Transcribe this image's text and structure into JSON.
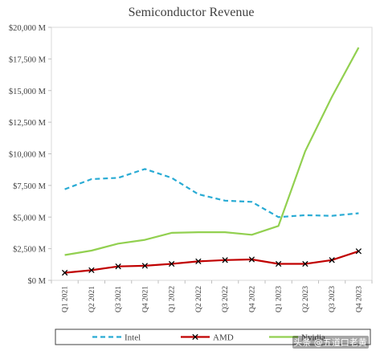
{
  "chart_data": {
    "type": "line",
    "title": "Semiconductor Revenue",
    "xlabel": "",
    "ylabel": "",
    "categories": [
      "Q1 2021",
      "Q2 2021",
      "Q3 2021",
      "Q4 2021",
      "Q1 2022",
      "Q2 2022",
      "Q3 2022",
      "Q4 2022",
      "Q1 2023",
      "Q2 2023",
      "Q3 2023",
      "Q4 2023"
    ],
    "ylim": [
      0,
      20000
    ],
    "y_ticks": [
      0,
      2500,
      5000,
      7500,
      10000,
      12500,
      15000,
      17500,
      20000
    ],
    "y_tick_labels": [
      "$0 M",
      "$2,500 M",
      "$5,000 M",
      "$7,500 M",
      "$10,000 M",
      "$12,500 M",
      "$15,000 M",
      "$17,500 M",
      "$20,000 M"
    ],
    "grid": false,
    "legend_position": "bottom",
    "series": [
      {
        "name": "Intel",
        "color": "#29abd4",
        "style": "dashed",
        "marker": "none",
        "values": [
          7200,
          8000,
          8100,
          8800,
          8100,
          6800,
          6300,
          6200,
          5000,
          5150,
          5100,
          5300
        ]
      },
      {
        "name": "AMD",
        "color": "#c00000",
        "style": "solid",
        "marker": "x",
        "values": [
          600,
          800,
          1100,
          1150,
          1300,
          1500,
          1600,
          1650,
          1300,
          1300,
          1600,
          2300
        ]
      },
      {
        "name": "Nvidia",
        "color": "#92d050",
        "style": "solid",
        "marker": "none",
        "values": [
          2000,
          2350,
          2900,
          3200,
          3750,
          3800,
          3800,
          3600,
          4300,
          10200,
          14500,
          18400
        ]
      }
    ]
  },
  "watermark": "头条 @五道口老黄"
}
